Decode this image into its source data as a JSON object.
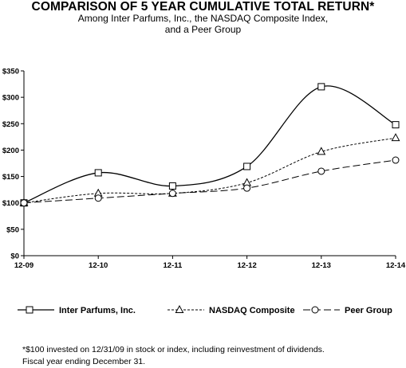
{
  "chart_data": {
    "type": "line",
    "title": "COMPARISON OF 5 YEAR CUMULATIVE TOTAL RETURN*",
    "subtitle_lines": [
      "Among Inter Parfums, Inc., the NASDAQ Composite Index,",
      "and a Peer Group"
    ],
    "categories": [
      "12-09",
      "12-10",
      "12-11",
      "12-12",
      "12-13",
      "12-14"
    ],
    "y_ticks": [
      "$0",
      "$50",
      "$100",
      "$150",
      "$200",
      "$250",
      "$300",
      "$350"
    ],
    "ylim": [
      0,
      350
    ],
    "y_step": 50,
    "grid": false,
    "legend_position": "bottom",
    "series": [
      {
        "name": "Inter Parfums, Inc.",
        "values": [
          100,
          157,
          132,
          169,
          320,
          248
        ],
        "marker": "square",
        "dash": "solid",
        "color": "#000000"
      },
      {
        "name": "NASDAQ Composite",
        "values": [
          100,
          118,
          118,
          138,
          197,
          223
        ],
        "marker": "triangle",
        "dash": "dotted",
        "color": "#000000"
      },
      {
        "name": "Peer Group",
        "values": [
          100,
          109,
          118,
          128,
          160,
          181
        ],
        "marker": "circle",
        "dash": "dashed",
        "color": "#000000"
      }
    ]
  },
  "footnotes": [
    "*$100 invested on 12/31/09 in stock or index, including reinvestment of dividends.",
    "Fiscal year ending December 31."
  ]
}
